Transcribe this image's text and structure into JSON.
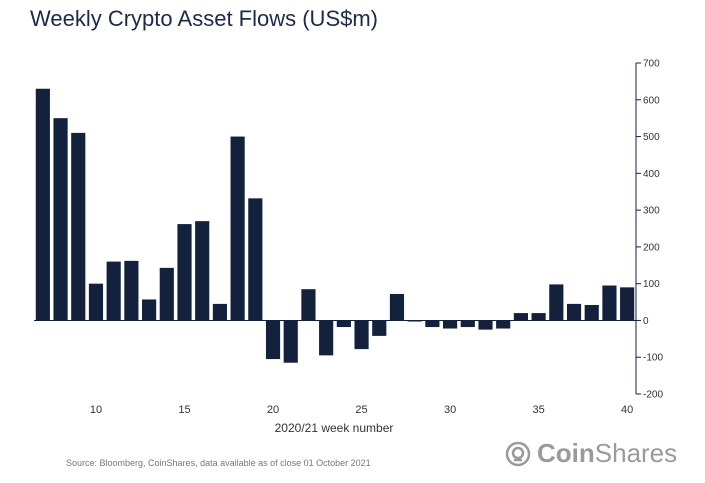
{
  "chart_data": {
    "type": "bar",
    "title": "Weekly Crypto Asset Flows (US$m)",
    "xlabel": "2020/21 week number",
    "ylabel": "",
    "x": [
      7,
      8,
      9,
      10,
      11,
      12,
      13,
      14,
      15,
      16,
      17,
      18,
      19,
      20,
      21,
      22,
      23,
      24,
      25,
      26,
      27,
      28,
      29,
      30,
      31,
      32,
      33,
      34,
      35,
      36,
      37,
      38,
      39,
      40
    ],
    "values": [
      630,
      550,
      510,
      100,
      160,
      162,
      57,
      143,
      262,
      270,
      45,
      500,
      332,
      -105,
      -115,
      85,
      -95,
      -18,
      -78,
      -42,
      72,
      -3,
      -18,
      -22,
      -18,
      -25,
      -22,
      20,
      20,
      98,
      45,
      42,
      95,
      90
    ],
    "ylim": [
      -200,
      700
    ],
    "yticks": [
      700,
      600,
      500,
      400,
      300,
      200,
      100,
      0,
      -100,
      -200
    ],
    "yticklabels": [
      "700",
      "600",
      "500",
      "400",
      "300",
      "200",
      "100",
      "0",
      "-100",
      "-200"
    ],
    "xticks": [
      10,
      15,
      20,
      25,
      30,
      35,
      40
    ],
    "xticklabels": [
      "10",
      "15",
      "20",
      "25",
      "30",
      "35",
      "40"
    ],
    "y_axis_side": "right",
    "bar_color": "#14213d"
  },
  "footer": {
    "source": "Source: Bloomberg, CoinShares, data available as of close 01 October 2021",
    "brand_part1": "Coin",
    "brand_part2": "Shares"
  }
}
